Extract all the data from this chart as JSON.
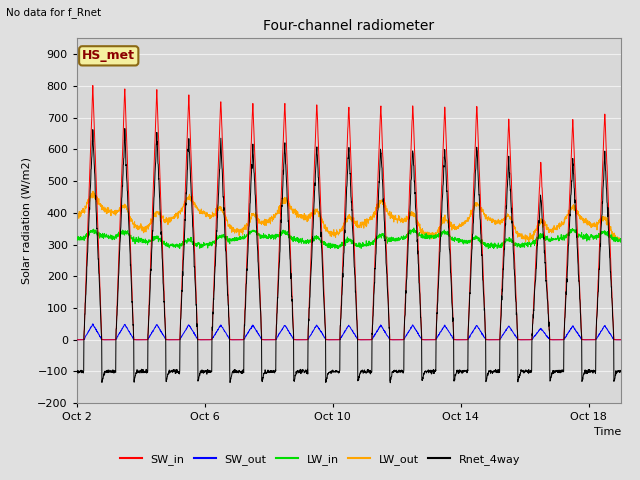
{
  "title": "Four-channel radiometer",
  "top_left_text": "No data for f_Rnet",
  "annotation_box": "HS_met",
  "ylabel": "Solar radiation (W/m2)",
  "xlabel": "Time",
  "xlim_days": [
    0,
    17
  ],
  "ylim": [
    -200,
    950
  ],
  "yticks": [
    -200,
    -100,
    0,
    100,
    200,
    300,
    400,
    500,
    600,
    700,
    800,
    900
  ],
  "xtick_labels": [
    "Oct 2",
    "Oct 6",
    "Oct 10",
    "Oct 14",
    "Oct 18"
  ],
  "xtick_positions": [
    0,
    4,
    8,
    12,
    16
  ],
  "background_color": "#e0e0e0",
  "plot_bg_color": "#d8d8d8",
  "grid_color": "#f0f0f0",
  "legend": [
    {
      "label": "SW_in",
      "color": "#ff0000"
    },
    {
      "label": "SW_out",
      "color": "#0000ff"
    },
    {
      "label": "LW_in",
      "color": "#00dd00"
    },
    {
      "label": "LW_out",
      "color": "#ffa500"
    },
    {
      "label": "Rnet_4way",
      "color": "#000000"
    }
  ],
  "num_days": 17,
  "day_peak_SW_in": [
    800,
    795,
    790,
    775,
    760,
    750,
    755,
    750,
    745,
    745,
    745,
    742,
    742,
    700,
    560,
    695,
    720
  ],
  "LW_in_base": 310,
  "LW_out_base": 385,
  "Rnet_night": -100
}
